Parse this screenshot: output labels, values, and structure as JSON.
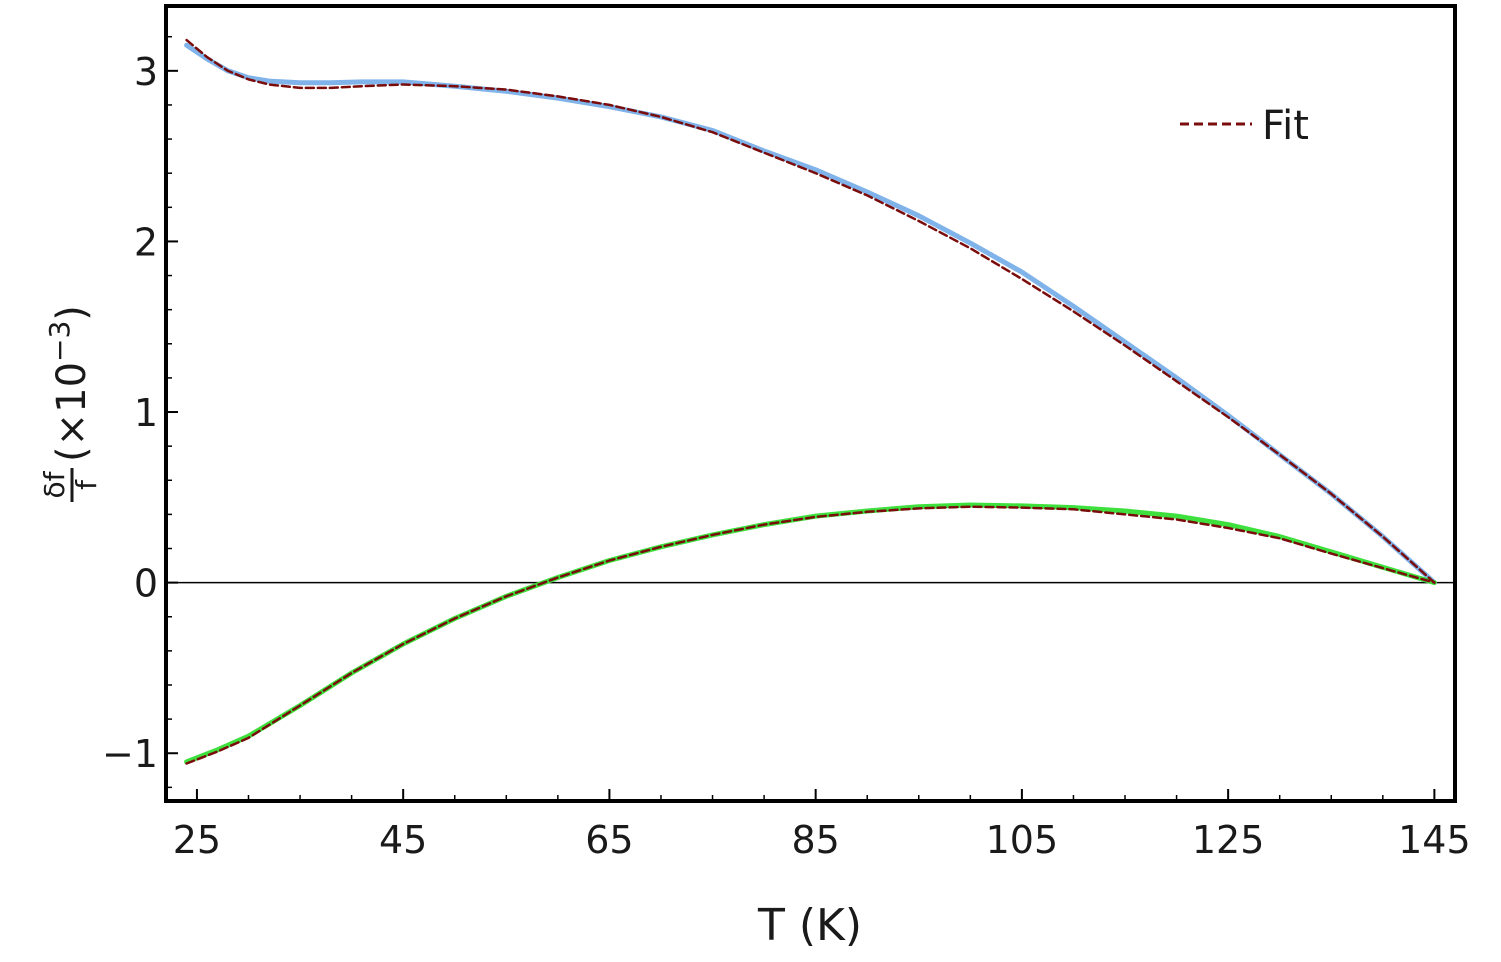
{
  "chart_data": {
    "type": "line",
    "xlabel": "T (K)",
    "ylabel": {
      "numerator": "δf",
      "denominator": "f",
      "suffix": "(×10",
      "exponent": "−3",
      "close": ")"
    },
    "xlim": [
      22,
      147
    ],
    "ylim": [
      -1.28,
      3.38
    ],
    "x_ticks": [
      25,
      45,
      65,
      85,
      105,
      125,
      145
    ],
    "x_tick_labels": [
      "25",
      "45",
      "65",
      "85",
      "105",
      "125",
      "145"
    ],
    "y_ticks": [
      -1,
      0,
      1,
      2,
      3
    ],
    "y_tick_labels": [
      "−1",
      "0",
      "1",
      "2",
      "3"
    ],
    "zero_line": true,
    "grid": false,
    "legend": {
      "position": "top-right",
      "entries": [
        {
          "label": "Fit",
          "style": "dashed",
          "color": "#7a0c0c"
        }
      ]
    },
    "series": [
      {
        "color": "#7fb3ea",
        "style": "solid",
        "x": [
          24,
          26,
          28,
          30,
          32,
          35,
          38,
          41,
          45,
          50,
          55,
          60,
          65,
          70,
          75,
          80,
          85,
          90,
          95,
          100,
          105,
          110,
          115,
          120,
          125,
          130,
          135,
          140,
          145
        ],
        "y": [
          3.15,
          3.07,
          3.0,
          2.96,
          2.94,
          2.93,
          2.93,
          2.935,
          2.935,
          2.91,
          2.88,
          2.84,
          2.79,
          2.73,
          2.65,
          2.53,
          2.42,
          2.29,
          2.15,
          1.99,
          1.82,
          1.62,
          1.41,
          1.2,
          0.98,
          0.75,
          0.52,
          0.27,
          0.0
        ]
      },
      {
        "color": "#3de03d",
        "style": "solid",
        "x": [
          24,
          27,
          30,
          35,
          40,
          45,
          50,
          55,
          60,
          65,
          70,
          75,
          80,
          85,
          90,
          95,
          100,
          105,
          110,
          115,
          120,
          125,
          130,
          135,
          140,
          145
        ],
        "y": [
          -1.05,
          -0.98,
          -0.9,
          -0.72,
          -0.53,
          -0.36,
          -0.21,
          -0.08,
          0.03,
          0.13,
          0.21,
          0.28,
          0.34,
          0.39,
          0.42,
          0.445,
          0.455,
          0.45,
          0.44,
          0.42,
          0.39,
          0.34,
          0.27,
          0.18,
          0.09,
          0.0
        ]
      },
      {
        "name": "Fit",
        "color": "#7a0c0c",
        "style": "dashed",
        "x": [
          24,
          26,
          28,
          30,
          32,
          35,
          38,
          41,
          45,
          50,
          55,
          60,
          65,
          70,
          75,
          80,
          85,
          90,
          95,
          100,
          105,
          110,
          115,
          120,
          125,
          130,
          135,
          140,
          145
        ],
        "y": [
          3.18,
          3.08,
          3.0,
          2.95,
          2.92,
          2.9,
          2.9,
          2.91,
          2.92,
          2.91,
          2.89,
          2.85,
          2.8,
          2.73,
          2.64,
          2.52,
          2.4,
          2.27,
          2.12,
          1.96,
          1.78,
          1.59,
          1.39,
          1.18,
          0.97,
          0.75,
          0.52,
          0.27,
          0.0
        ]
      },
      {
        "name": "Fit",
        "color": "#7a0c0c",
        "style": "dashed",
        "x": [
          24,
          27,
          30,
          35,
          40,
          45,
          50,
          55,
          60,
          65,
          70,
          75,
          80,
          85,
          90,
          95,
          100,
          105,
          110,
          115,
          120,
          125,
          130,
          135,
          140,
          145
        ],
        "y": [
          -1.06,
          -0.99,
          -0.91,
          -0.72,
          -0.53,
          -0.36,
          -0.21,
          -0.08,
          0.03,
          0.13,
          0.21,
          0.28,
          0.34,
          0.385,
          0.415,
          0.435,
          0.445,
          0.44,
          0.43,
          0.4,
          0.37,
          0.32,
          0.26,
          0.17,
          0.085,
          0.0
        ]
      }
    ]
  }
}
